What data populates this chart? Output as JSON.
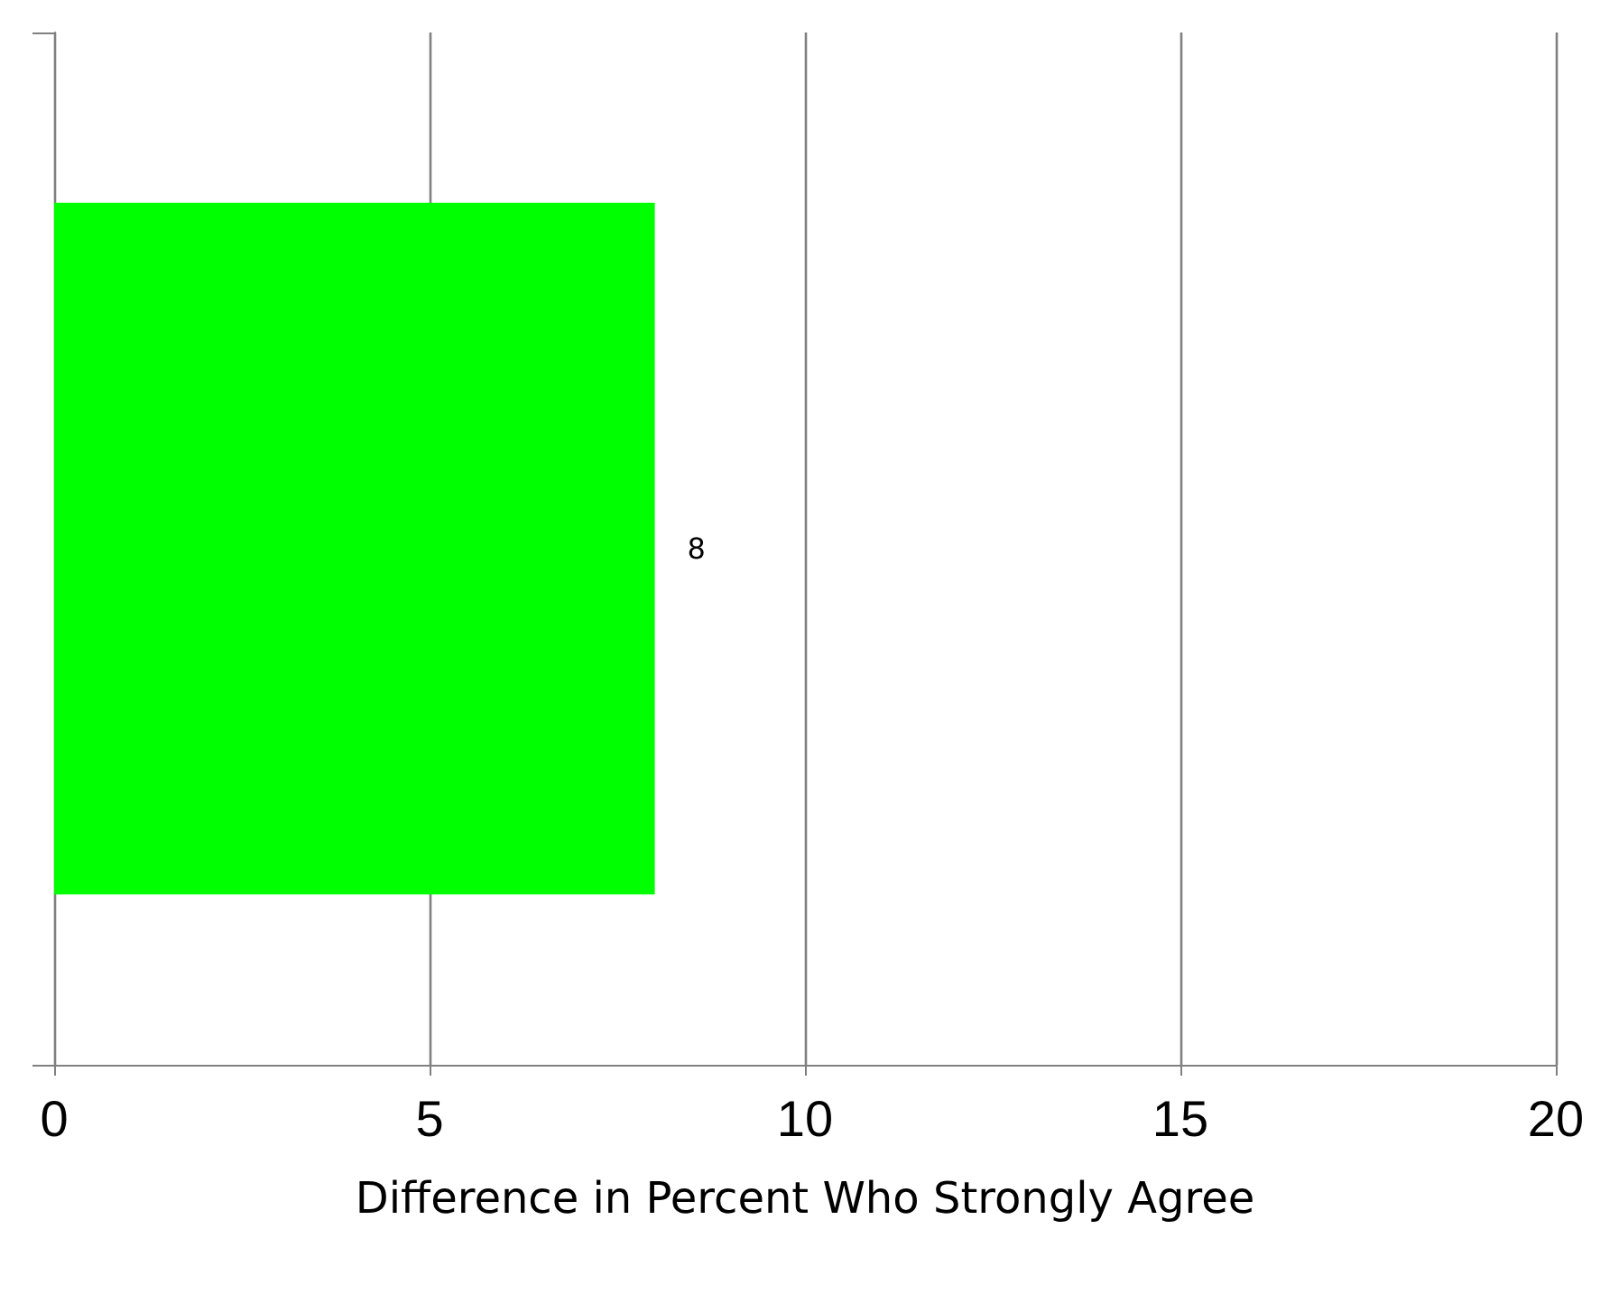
{
  "chart_data": {
    "type": "bar",
    "orientation": "horizontal",
    "categories": [
      null
    ],
    "values": [
      8
    ],
    "color": "#00ff00",
    "xlim": [
      0,
      20
    ],
    "xticks": [
      0,
      5,
      10,
      15,
      20
    ],
    "xlabel": "Difference in Percent Who Strongly Agree",
    "grid": "x",
    "data_labels": true
  }
}
